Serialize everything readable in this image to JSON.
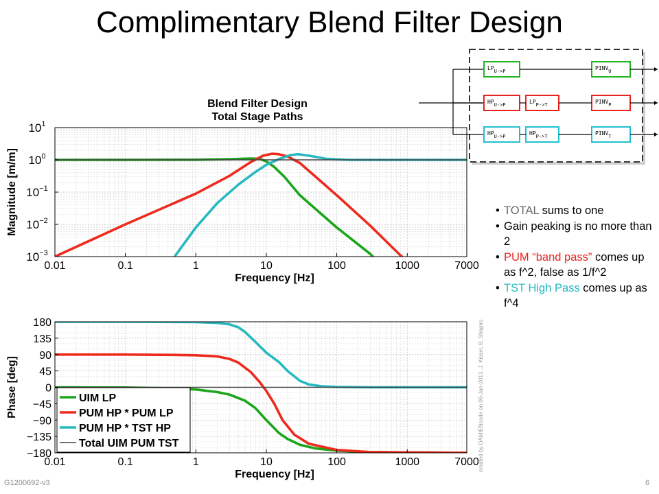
{
  "slide": {
    "title": "Complimentary Blend Filter Design",
    "footer_left": "G1200692-v3",
    "page_number": "6",
    "side_credit": "created by DAMIENcode on 06-Jan-2013, J. Kissel, B. Shapiro"
  },
  "bullets": [
    {
      "parts": [
        {
          "text": "TOTAL",
          "style": "grayish"
        },
        {
          "text": " sums to one",
          "style": ""
        }
      ]
    },
    {
      "parts": [
        {
          "text": "Gain peaking is no more than 2",
          "style": ""
        }
      ]
    },
    {
      "parts": [
        {
          "text": "PUM “band pass”",
          "style": "red"
        },
        {
          "text": " comes up as f^2, false as 1/f^2",
          "style": ""
        }
      ]
    },
    {
      "parts": [
        {
          "text": "TST High Pass",
          "style": "teal"
        },
        {
          "text": " comes up as f^4",
          "style": ""
        }
      ]
    }
  ],
  "diagram": {
    "rows": [
      {
        "blocks": [
          "LP",
          "",
          "PINV"
        ],
        "subs": [
          "U->P",
          "",
          "U"
        ],
        "color": "#22b522"
      },
      {
        "blocks": [
          "HP",
          "LP",
          "PINV"
        ],
        "subs": [
          "U->P",
          "P->T",
          "P"
        ],
        "color": "#e8231f"
      },
      {
        "blocks": [
          "HP",
          "HP",
          "PINV"
        ],
        "subs": [
          "U->P",
          "P->T",
          "T"
        ],
        "color": "#20c0d0"
      }
    ]
  },
  "colors": {
    "uim": "#1aa51a",
    "pum": "#ee2a1c",
    "tst": "#27b8c0",
    "total": "#444444"
  },
  "chart_data": [
    {
      "type": "line",
      "title": "Blend Filter Design",
      "subtitle": "Total Stage Paths",
      "xlabel": "Frequency [Hz]",
      "ylabel": "Magnitude [m/m]",
      "xscale": "log",
      "yscale": "log",
      "xlim": [
        0.01,
        7000
      ],
      "ylim": [
        0.001,
        10
      ],
      "xticks": [
        "0.01",
        "0.1",
        "1",
        "10",
        "100",
        "1000",
        "7000"
      ],
      "xtick_values": [
        0.01,
        0.1,
        1,
        10,
        100,
        1000,
        7000
      ],
      "yticks": [
        {
          "base": "10",
          "exp": "1",
          "value": 10
        },
        {
          "base": "10",
          "exp": "0",
          "value": 1
        },
        {
          "base": "10",
          "exp": "−1",
          "value": 0.1
        },
        {
          "base": "10",
          "exp": "−2",
          "value": 0.01
        },
        {
          "base": "10",
          "exp": "−3",
          "value": 0.001
        }
      ],
      "grid": true,
      "series": [
        {
          "key": "uim",
          "x": [
            0.01,
            0.1,
            1,
            3,
            6,
            8,
            10,
            13,
            18,
            30,
            100,
            300,
            550
          ],
          "y": [
            1,
            1,
            1.01,
            1.05,
            1.1,
            1.08,
            0.9,
            0.6,
            0.3,
            0.08,
            0.008,
            0.0012,
            0.0003
          ]
        },
        {
          "key": "pum",
          "x": [
            0.007,
            0.01,
            0.1,
            1,
            3,
            6,
            9,
            12,
            15,
            20,
            30,
            100,
            300,
            800,
            1200
          ],
          "y": [
            0.0007,
            0.001,
            0.01,
            0.09,
            0.32,
            0.85,
            1.35,
            1.55,
            1.5,
            1.28,
            0.8,
            0.08,
            0.009,
            0.0011,
            0.0005
          ]
        },
        {
          "key": "tst",
          "x": [
            0.3,
            0.5,
            1,
            2,
            4,
            7,
            10,
            15,
            22,
            28,
            40,
            70,
            150,
            7000
          ],
          "y": [
            0.0002,
            0.001,
            0.008,
            0.045,
            0.17,
            0.42,
            0.7,
            1.05,
            1.4,
            1.5,
            1.35,
            1.08,
            1.0,
            1.0
          ]
        },
        {
          "key": "total",
          "x": [
            0.01,
            7000
          ],
          "y": [
            1,
            1
          ]
        }
      ]
    },
    {
      "type": "line",
      "xlabel": "Frequency [Hz]",
      "ylabel": "Phase [deg]",
      "xscale": "log",
      "xlim": [
        0.01,
        7000
      ],
      "ylim": [
        -180,
        180
      ],
      "xticks": [
        "0.01",
        "0.1",
        "1",
        "10",
        "100",
        "1000",
        "7000"
      ],
      "xtick_values": [
        0.01,
        0.1,
        1,
        10,
        100,
        1000,
        7000
      ],
      "yticks": [
        "180",
        "135",
        "90",
        "45",
        "0",
        "−45",
        "−90",
        "−135",
        "−180"
      ],
      "ytick_values": [
        180,
        135,
        90,
        45,
        0,
        -45,
        -90,
        -135,
        -180
      ],
      "grid": true,
      "legend": {
        "position": "lower-left",
        "entries": [
          {
            "key": "uim",
            "label": "UIM LP"
          },
          {
            "key": "pum",
            "label": "PUM HP * PUM LP"
          },
          {
            "key": "tst",
            "label": "PUM HP * TST HP"
          },
          {
            "key": "total",
            "label": "Total UIM PUM TST"
          }
        ]
      },
      "series": [
        {
          "key": "uim",
          "x": [
            0.01,
            0.1,
            0.5,
            1,
            2,
            3,
            5,
            7,
            10,
            15,
            20,
            30,
            50,
            100,
            300,
            7000
          ],
          "y": [
            0,
            -0.5,
            -3,
            -6,
            -13,
            -20,
            -37,
            -57,
            -90,
            -125,
            -142,
            -158,
            -168,
            -174,
            -178,
            -180
          ]
        },
        {
          "key": "pum",
          "x": [
            0.01,
            0.1,
            0.5,
            1,
            2,
            3,
            4,
            6,
            8,
            10,
            13,
            17,
            25,
            40,
            100,
            300,
            7000
          ],
          "y": [
            90,
            90,
            89,
            88,
            85,
            78,
            68,
            42,
            15,
            -10,
            -45,
            -90,
            -130,
            -155,
            -172,
            -178,
            -180
          ]
        },
        {
          "key": "tst",
          "x": [
            0.01,
            0.1,
            1,
            2,
            3,
            4,
            5,
            7,
            10,
            15,
            20,
            30,
            40,
            60,
            100,
            300,
            7000
          ],
          "y": [
            180,
            180,
            179,
            177,
            173,
            165,
            152,
            125,
            95,
            70,
            45,
            18,
            8,
            3,
            1,
            0,
            0
          ]
        },
        {
          "key": "total",
          "x": [
            0.01,
            7000
          ],
          "y": [
            0,
            0
          ]
        }
      ]
    }
  ]
}
